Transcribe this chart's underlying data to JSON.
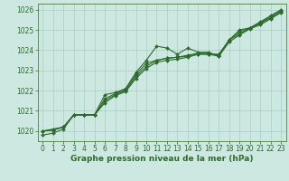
{
  "x": [
    0,
    1,
    2,
    3,
    4,
    5,
    6,
    7,
    8,
    9,
    10,
    11,
    12,
    13,
    14,
    15,
    16,
    17,
    18,
    19,
    20,
    21,
    22,
    23
  ],
  "line1": [
    1020.0,
    1020.1,
    1020.2,
    1020.8,
    1020.8,
    1020.8,
    1021.8,
    1021.9,
    1022.1,
    1022.9,
    1023.5,
    1024.2,
    1024.1,
    1023.8,
    1024.1,
    1023.9,
    1023.9,
    1023.7,
    1024.5,
    1025.0,
    1025.1,
    1025.4,
    1025.7,
    1026.0
  ],
  "line2": [
    1020.0,
    1020.05,
    1020.2,
    1020.8,
    1020.8,
    1020.8,
    1021.5,
    1021.8,
    1022.0,
    1022.7,
    1023.2,
    1023.5,
    1023.6,
    1023.65,
    1023.7,
    1023.8,
    1023.8,
    1023.8,
    1024.5,
    1024.8,
    1025.1,
    1025.3,
    1025.6,
    1025.9
  ],
  "line3": [
    1020.0,
    1020.05,
    1020.2,
    1020.8,
    1020.8,
    1020.8,
    1021.6,
    1021.85,
    1022.05,
    1022.8,
    1023.35,
    1023.5,
    1023.6,
    1023.65,
    1023.75,
    1023.85,
    1023.85,
    1023.75,
    1024.5,
    1024.9,
    1025.1,
    1025.35,
    1025.65,
    1025.95
  ],
  "line4": [
    1019.8,
    1019.9,
    1020.1,
    1020.8,
    1020.8,
    1020.8,
    1021.4,
    1021.75,
    1021.95,
    1022.6,
    1023.1,
    1023.4,
    1023.5,
    1023.55,
    1023.65,
    1023.8,
    1023.8,
    1023.7,
    1024.4,
    1024.75,
    1025.05,
    1025.25,
    1025.55,
    1025.85
  ],
  "ylim": [
    1019.5,
    1026.3
  ],
  "yticks": [
    1020,
    1021,
    1022,
    1023,
    1024,
    1025,
    1026
  ],
  "xlim": [
    -0.5,
    23.5
  ],
  "xlabel": "Graphe pression niveau de la mer (hPa)",
  "line_color": "#2d6b2d",
  "bg_color": "#cce8e0",
  "grid_color": "#a8cfc4",
  "marker": "D",
  "markersize": 2.0,
  "linewidth": 0.8,
  "xlabel_fontsize": 6.5,
  "tick_fontsize": 5.5
}
